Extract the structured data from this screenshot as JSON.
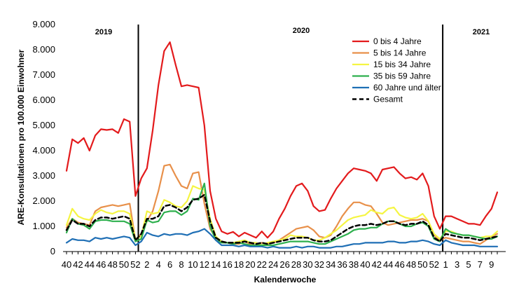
{
  "chart_data": {
    "type": "line",
    "title": "",
    "xlabel": "Kalenderwoche",
    "ylabel": "ARE-Konsultationen pro 100.000 Einwohner",
    "ylim": [
      0,
      9000
    ],
    "yticks": [
      0,
      1000,
      2000,
      3000,
      4000,
      5000,
      6000,
      7000,
      8000,
      9000
    ],
    "ytick_labels": [
      "0",
      "1.000",
      "2.000",
      "3.000",
      "4.000",
      "5.000",
      "6.000",
      "7.000",
      "8.000",
      "9.000"
    ],
    "weeks": [
      40,
      41,
      42,
      43,
      44,
      45,
      46,
      47,
      48,
      49,
      50,
      51,
      52,
      1,
      2,
      3,
      4,
      5,
      6,
      7,
      8,
      9,
      10,
      11,
      12,
      13,
      14,
      15,
      16,
      17,
      18,
      19,
      20,
      21,
      22,
      23,
      24,
      25,
      26,
      27,
      28,
      29,
      30,
      31,
      32,
      33,
      34,
      35,
      36,
      37,
      38,
      39,
      40,
      41,
      42,
      43,
      44,
      45,
      46,
      47,
      48,
      49,
      50,
      51,
      52,
      53,
      1,
      2,
      3,
      4,
      5,
      6,
      7,
      8,
      9,
      10
    ],
    "x_tick_labels": [
      "40",
      "42",
      "44",
      "46",
      "48",
      "50",
      "52",
      "2",
      "4",
      "6",
      "8",
      "10",
      "12",
      "14",
      "16",
      "18",
      "20",
      "22",
      "24",
      "26",
      "28",
      "30",
      "32",
      "34",
      "36",
      "38",
      "40",
      "42",
      "44",
      "46",
      "48",
      "50",
      "52",
      "1",
      "3",
      "5",
      "7",
      "9"
    ],
    "year_labels": [
      "2019",
      "2020",
      "2021"
    ],
    "year_breaks_after_index": [
      12,
      65
    ],
    "legend_position": "top-right",
    "grid": false,
    "series": [
      {
        "name": "0 bis 4 Jahre",
        "color": "#e31a1c",
        "dash": "solid",
        "values": [
          3200,
          4450,
          4300,
          4500,
          4000,
          4600,
          4850,
          4820,
          4850,
          4700,
          5250,
          5150,
          2200,
          2900,
          3300,
          4800,
          6600,
          7950,
          8300,
          7400,
          6550,
          6600,
          6550,
          6500,
          5000,
          2400,
          1300,
          800,
          700,
          780,
          600,
          750,
          650,
          550,
          800,
          550,
          800,
          1300,
          1700,
          2200,
          2600,
          2700,
          2400,
          1800,
          1600,
          1650,
          2100,
          2500,
          2800,
          3100,
          3300,
          3250,
          3200,
          3100,
          2800,
          3250,
          3300,
          3350,
          3100,
          2900,
          2950,
          2850,
          3100,
          2600,
          1400,
          900,
          1400,
          1400,
          1300,
          1200,
          1100,
          1100,
          1050,
          1400,
          1700,
          2350
        ]
      },
      {
        "name": "5 bis 14 Jahre",
        "color": "#e8904a",
        "dash": "solid",
        "values": [
          950,
          1300,
          1150,
          1100,
          1050,
          1600,
          1750,
          1800,
          1850,
          1800,
          1850,
          1900,
          450,
          700,
          1200,
          1600,
          2400,
          3400,
          3450,
          3000,
          2600,
          2500,
          3100,
          3150,
          1900,
          900,
          550,
          400,
          350,
          300,
          300,
          400,
          300,
          250,
          350,
          300,
          350,
          450,
          600,
          750,
          900,
          950,
          1000,
          850,
          600,
          550,
          650,
          1000,
          1400,
          1700,
          1950,
          1950,
          1850,
          1800,
          1500,
          1150,
          1050,
          1100,
          1150,
          1200,
          1250,
          1250,
          1300,
          1200,
          650,
          450,
          550,
          500,
          450,
          400,
          400,
          350,
          300,
          450,
          600,
          700
        ]
      },
      {
        "name": "15 bis 34 Jahre",
        "color": "#f5f542",
        "dash": "solid",
        "values": [
          1050,
          1700,
          1400,
          1300,
          1250,
          1500,
          1650,
          1550,
          1500,
          1600,
          1600,
          1500,
          500,
          600,
          1600,
          1500,
          1550,
          2050,
          1950,
          1800,
          1750,
          2000,
          2600,
          2500,
          2450,
          1300,
          600,
          400,
          350,
          350,
          400,
          450,
          350,
          350,
          250,
          350,
          400,
          450,
          500,
          650,
          600,
          600,
          550,
          450,
          450,
          550,
          700,
          850,
          1050,
          1250,
          1350,
          1400,
          1450,
          1650,
          1550,
          1500,
          1700,
          1750,
          1450,
          1350,
          1300,
          1350,
          1500,
          1200,
          700,
          500,
          800,
          800,
          700,
          650,
          650,
          600,
          550,
          600,
          600,
          800
        ]
      },
      {
        "name": "35 bis 59 Jahre",
        "color": "#2eb04e",
        "dash": "solid",
        "values": [
          750,
          1300,
          1100,
          1050,
          900,
          1200,
          1250,
          1250,
          1200,
          1200,
          1200,
          1100,
          400,
          500,
          1250,
          1150,
          1200,
          1550,
          1600,
          1600,
          1450,
          1600,
          2100,
          2050,
          2700,
          1000,
          450,
          350,
          350,
          300,
          350,
          300,
          250,
          250,
          250,
          250,
          250,
          300,
          350,
          400,
          400,
          400,
          400,
          350,
          300,
          300,
          400,
          500,
          600,
          700,
          850,
          900,
          900,
          950,
          950,
          1100,
          1200,
          1200,
          1100,
          1000,
          1000,
          1100,
          1150,
          1000,
          500,
          400,
          900,
          750,
          700,
          650,
          650,
          600,
          550,
          500,
          500,
          600
        ]
      },
      {
        "name": "60 Jahre und älter",
        "color": "#1f6fb5",
        "dash": "solid",
        "values": [
          350,
          500,
          450,
          450,
          400,
          550,
          500,
          550,
          500,
          550,
          600,
          550,
          250,
          400,
          750,
          650,
          600,
          700,
          650,
          700,
          700,
          650,
          750,
          800,
          900,
          700,
          450,
          250,
          250,
          250,
          200,
          250,
          200,
          200,
          200,
          150,
          200,
          150,
          150,
          150,
          200,
          150,
          200,
          200,
          150,
          150,
          150,
          200,
          200,
          250,
          300,
          300,
          350,
          350,
          350,
          350,
          400,
          400,
          350,
          350,
          400,
          400,
          450,
          400,
          300,
          250,
          450,
          350,
          300,
          250,
          250,
          250,
          200,
          200,
          200,
          200
        ]
      },
      {
        "name": "Gesamt",
        "color": "#000000",
        "dash": "dashed",
        "values": [
          850,
          1250,
          1100,
          1100,
          1000,
          1250,
          1350,
          1350,
          1300,
          1350,
          1400,
          1300,
          450,
          700,
          1300,
          1300,
          1400,
          1800,
          1850,
          1750,
          1600,
          1750,
          2050,
          2100,
          2250,
          1200,
          550,
          400,
          350,
          350,
          350,
          400,
          350,
          300,
          350,
          300,
          350,
          400,
          450,
          500,
          550,
          550,
          550,
          450,
          400,
          400,
          450,
          600,
          750,
          900,
          1000,
          1050,
          1050,
          1100,
          1050,
          1100,
          1200,
          1200,
          1100,
          1050,
          1100,
          1100,
          1200,
          1050,
          550,
          400,
          700,
          650,
          600,
          550,
          550,
          500,
          450,
          500,
          550,
          600
        ]
      }
    ]
  }
}
